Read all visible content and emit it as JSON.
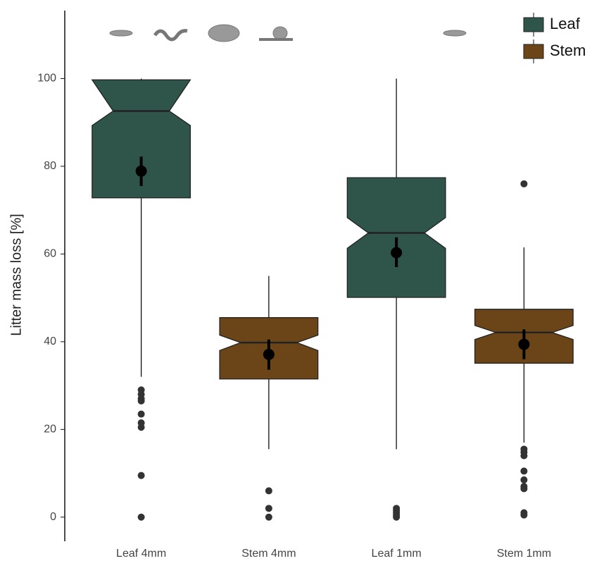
{
  "chart_data": {
    "type": "box",
    "y_label": "Litter mass loss [%]",
    "categories": [
      "Leaf 4mm",
      "Stem 4mm",
      "Leaf 1mm",
      "Stem 1mm"
    ],
    "ylim": [
      -5.5,
      115.5
    ],
    "yticks": [
      0,
      20,
      40,
      60,
      80,
      100
    ],
    "legend": [
      {
        "name": "Leaf",
        "color": "#2f5449"
      },
      {
        "name": "Stem",
        "color": "#6b4418"
      }
    ],
    "legend_position": "top-right",
    "boxes": [
      {
        "color": "#2f5449",
        "whislo": 32,
        "q1": 72.8,
        "notch_lo": 89.3,
        "median": 92.6,
        "notch_hi": 99.7,
        "q3": 99.7,
        "whishi": 100,
        "mean": 78.9,
        "mean_lo": 75.5,
        "mean_hi": 82.2,
        "fliers": [
          29,
          28,
          27,
          26.5,
          23.5,
          21.5,
          20.5,
          9.5,
          0
        ]
      },
      {
        "color": "#6b4418",
        "whislo": 15.5,
        "q1": 31.5,
        "notch_lo": 38.0,
        "median": 39.8,
        "notch_hi": 41.5,
        "q3": 45.5,
        "whishi": 55,
        "mean": 37.1,
        "mean_lo": 33.6,
        "mean_hi": 40.5,
        "fliers": [
          6,
          2,
          0
        ]
      },
      {
        "color": "#2f5449",
        "whislo": 15.5,
        "q1": 50.1,
        "notch_lo": 61.3,
        "median": 64.8,
        "notch_hi": 68.3,
        "q3": 77.4,
        "whishi": 100,
        "mean": 60.3,
        "mean_lo": 57.0,
        "mean_hi": 63.8,
        "fliers": [
          2,
          1.5,
          1,
          0.5,
          0
        ]
      },
      {
        "color": "#6b4418",
        "whislo": 17,
        "q1": 35.1,
        "notch_lo": 40.5,
        "median": 42.1,
        "notch_hi": 43.7,
        "q3": 47.4,
        "whishi": 61.5,
        "mean": 39.4,
        "mean_lo": 36.0,
        "mean_hi": 42.8,
        "fliers": [
          76,
          15.5,
          14.8,
          14,
          10.5,
          8.5,
          7,
          6.5,
          1,
          0.5
        ]
      }
    ]
  }
}
